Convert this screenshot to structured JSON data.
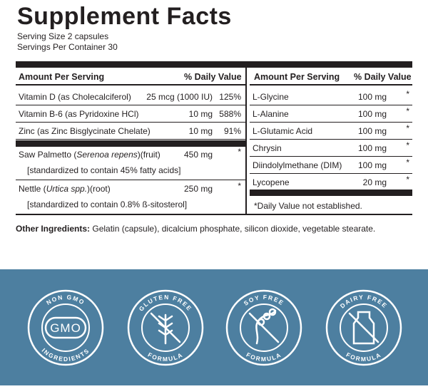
{
  "header": {
    "title": "Supplement Facts",
    "serving_size": "Serving Size 2 capsules",
    "servings_per_container": "Servings Per Container 30"
  },
  "left_table": {
    "columns": [
      "Amount Per Serving",
      "% Daily Value"
    ],
    "rows": [
      {
        "name": "Vitamin D (as Cholecalciferol)",
        "amount": "25 mcg (1000 IU)",
        "dv": "125%"
      },
      {
        "name": "Vitamin B-6 (as Pyridoxine HCl)",
        "amount": "10 mg",
        "dv": "588%"
      },
      {
        "name": "Zinc (as Zinc Bisglycinate Chelate)",
        "amount": "10 mg",
        "dv": "91%"
      }
    ],
    "botanicals": [
      {
        "name": [
          "Saw Palmetto (",
          "Serenoa repens",
          ")(fruit)"
        ],
        "amount": "450 mg",
        "dv": "*",
        "note": "[standardized to contain 45% fatty acids]"
      },
      {
        "name": [
          "Nettle (",
          "Urtica spp.",
          ")(root)"
        ],
        "amount": "250 mg",
        "dv": "*",
        "note": "[standardized to contain 0.8% ß-sitosterol]"
      }
    ]
  },
  "right_table": {
    "columns": [
      "Amount Per Serving",
      "% Daily Value"
    ],
    "rows": [
      {
        "name": "L-Glycine",
        "amount": "100 mg",
        "dv": "*"
      },
      {
        "name": "L-Alanine",
        "amount": "100 mg",
        "dv": "*"
      },
      {
        "name": "L-Glutamic Acid",
        "amount": "100 mg",
        "dv": "*"
      },
      {
        "name": "Chrysin",
        "amount": "100 mg",
        "dv": "*"
      },
      {
        "name": "Diindolylmethane (DIM)",
        "amount": "100 mg",
        "dv": "*"
      },
      {
        "name": "Lycopene",
        "amount": "20 mg",
        "dv": "*"
      }
    ],
    "footnote": "*Daily Value not established."
  },
  "other_ingredients": {
    "label": "Other Ingredients:",
    "text": "Gelatin (capsule), dicalcium phosphate, silicon dioxide, vegetable stearate."
  },
  "badges": [
    {
      "top": "NON GMO",
      "bottom": "INGREDIENTS",
      "center": "GMO"
    },
    {
      "top": "GLUTEN FREE",
      "bottom": "FORMULA"
    },
    {
      "top": "SOY FREE",
      "bottom": "FORMULA"
    },
    {
      "top": "DAIRY FREE",
      "bottom": "FORMULA"
    }
  ]
}
